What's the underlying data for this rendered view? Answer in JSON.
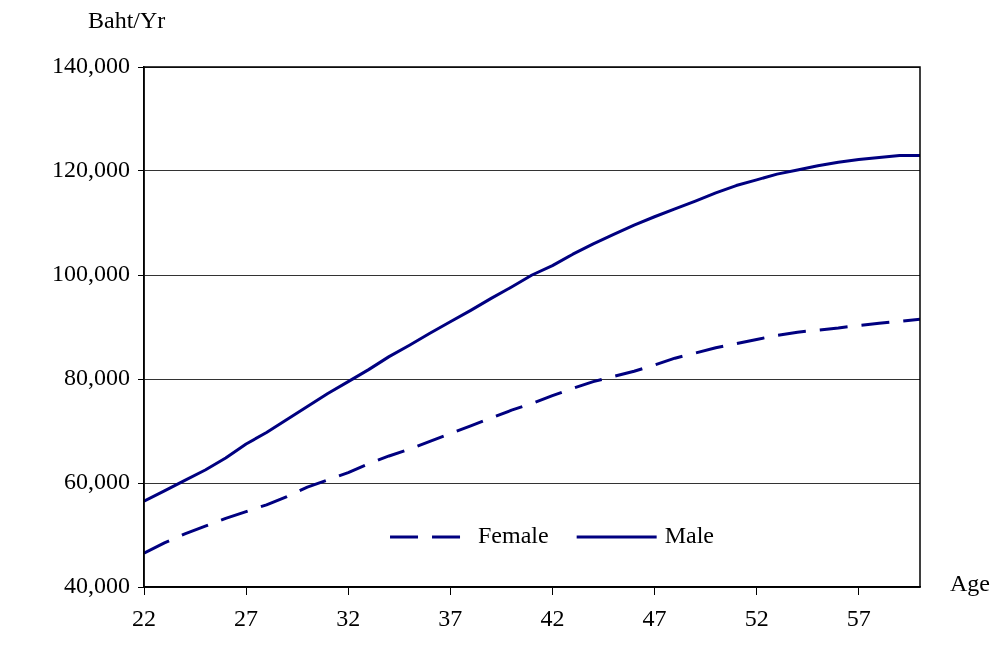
{
  "chart_data": {
    "type": "line",
    "xlabel": "Age",
    "ylabel": "Baht/Yr",
    "x": [
      22,
      23,
      24,
      25,
      26,
      27,
      28,
      29,
      30,
      31,
      32,
      33,
      34,
      35,
      36,
      37,
      38,
      39,
      40,
      41,
      42,
      43,
      44,
      45,
      46,
      47,
      48,
      49,
      50,
      51,
      52,
      53,
      54,
      55,
      56,
      57,
      58,
      59,
      60
    ],
    "series": [
      {
        "name": "Female",
        "color": "#000080",
        "line_style": "dashed",
        "values": [
          46500,
          48500,
          50200,
          51700,
          53200,
          54500,
          55800,
          57400,
          59200,
          60600,
          62000,
          63700,
          65200,
          66500,
          68000,
          69500,
          71000,
          72500,
          74000,
          75300,
          76800,
          78200,
          79500,
          80500,
          81500,
          82700,
          84000,
          85000,
          86000,
          86800,
          87600,
          88400,
          89000,
          89400,
          89800,
          90300,
          90700,
          91100,
          91500
        ]
      },
      {
        "name": "Male",
        "color": "#000080",
        "line_style": "solid",
        "values": [
          56500,
          58500,
          60500,
          62500,
          64800,
          67500,
          69700,
          72200,
          74700,
          77200,
          79500,
          81800,
          84300,
          86500,
          88800,
          91000,
          93200,
          95500,
          97700,
          100000,
          101800,
          104000,
          106000,
          107800,
          109600,
          111200,
          112700,
          114200,
          115800,
          117200,
          118300,
          119400,
          120200,
          121000,
          121700,
          122200,
          122600,
          123000,
          123000
        ]
      }
    ],
    "xlim": [
      22,
      60
    ],
    "xticks": [
      22,
      27,
      32,
      37,
      42,
      47,
      52,
      57
    ],
    "ylim": [
      40000,
      140000
    ],
    "yticks": [
      {
        "value": 40000,
        "label": "40,000"
      },
      {
        "value": 60000,
        "label": "60,000"
      },
      {
        "value": 80000,
        "label": "80,000"
      },
      {
        "value": 100000,
        "label": "100,000"
      },
      {
        "value": 120000,
        "label": "120,000"
      },
      {
        "value": 140000,
        "label": "140,000"
      }
    ],
    "grid": "y",
    "legend": "bottom",
    "marker": "none"
  }
}
